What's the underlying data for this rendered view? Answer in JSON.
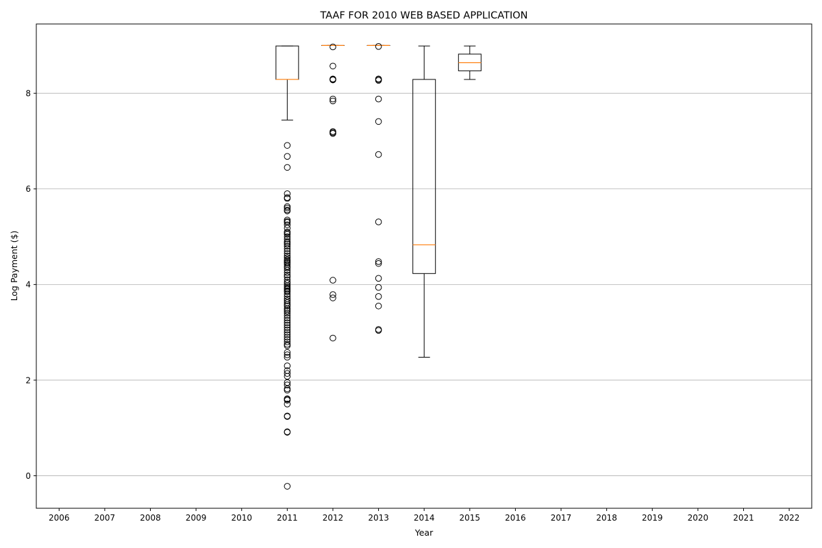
{
  "chart_data": {
    "type": "boxplot",
    "title": "TAAF FOR 2010 WEB BASED APPLICATION",
    "xlabel": "Year",
    "ylabel": "Log Payment ($)",
    "categories": [
      "2006",
      "2007",
      "2008",
      "2009",
      "2010",
      "2011",
      "2012",
      "2013",
      "2014",
      "2015",
      "2016",
      "2017",
      "2018",
      "2019",
      "2020",
      "2021",
      "2022"
    ],
    "ylim": [
      -0.68,
      9.45
    ],
    "yticks": [
      0,
      2,
      4,
      6,
      8
    ],
    "grid": "y",
    "colors": {
      "box": "#000000",
      "median": "#ff7f0e",
      "grid": "#b0b0b0"
    },
    "boxes": [
      {
        "category": "2011",
        "whisker_low": 7.44,
        "q1": 8.29,
        "median": 8.29,
        "q3": 8.99,
        "whisker_high": 8.99,
        "fliers": [
          6.91,
          6.68,
          6.45,
          5.9,
          5.82,
          5.8,
          5.63,
          5.6,
          5.56,
          5.54,
          5.35,
          5.32,
          5.3,
          5.25,
          5.18,
          5.1,
          5.08,
          5.05,
          5.0,
          4.95,
          4.9,
          4.87,
          4.84,
          4.8,
          4.75,
          4.7,
          4.65,
          4.6,
          4.56,
          4.52,
          4.5,
          4.47,
          4.45,
          4.42,
          4.38,
          4.35,
          4.3,
          4.25,
          4.2,
          4.16,
          4.1,
          4.05,
          4.02,
          3.98,
          3.95,
          3.92,
          3.9,
          3.87,
          3.85,
          3.8,
          3.75,
          3.7,
          3.66,
          3.62,
          3.58,
          3.55,
          3.5,
          3.47,
          3.44,
          3.4,
          3.35,
          3.3,
          3.25,
          3.2,
          3.15,
          3.1,
          3.05,
          3.0,
          2.95,
          2.9,
          2.85,
          2.8,
          2.75,
          2.72,
          2.58,
          2.53,
          2.48,
          2.3,
          2.2,
          2.14,
          2.08,
          1.95,
          1.9,
          1.82,
          1.79,
          1.61,
          1.6,
          1.58,
          1.5,
          1.25,
          1.24,
          0.92,
          0.91,
          -0.22
        ]
      },
      {
        "category": "2012",
        "whisker_low": 9.0,
        "q1": 9.0,
        "median": 9.0,
        "q3": 9.0,
        "whisker_high": 9.0,
        "fliers": [
          8.97,
          8.57,
          8.3,
          8.29,
          8.28,
          7.88,
          7.84,
          7.2,
          7.18,
          7.16,
          4.09,
          3.79,
          3.72,
          2.88
        ]
      },
      {
        "category": "2013",
        "whisker_low": 9.0,
        "q1": 9.0,
        "median": 9.0,
        "q3": 9.0,
        "whisker_high": 9.0,
        "fliers": [
          8.98,
          8.3,
          8.29,
          8.27,
          7.88,
          7.41,
          6.72,
          5.31,
          4.48,
          4.44,
          4.13,
          3.94,
          3.75,
          3.55,
          3.06,
          3.04
        ]
      },
      {
        "category": "2014",
        "whisker_low": 2.48,
        "q1": 4.23,
        "median": 4.83,
        "q3": 8.29,
        "whisker_high": 8.99,
        "fliers": []
      },
      {
        "category": "2015",
        "whisker_low": 8.29,
        "q1": 8.47,
        "median": 8.64,
        "q3": 8.82,
        "whisker_high": 8.99,
        "fliers": []
      }
    ]
  }
}
